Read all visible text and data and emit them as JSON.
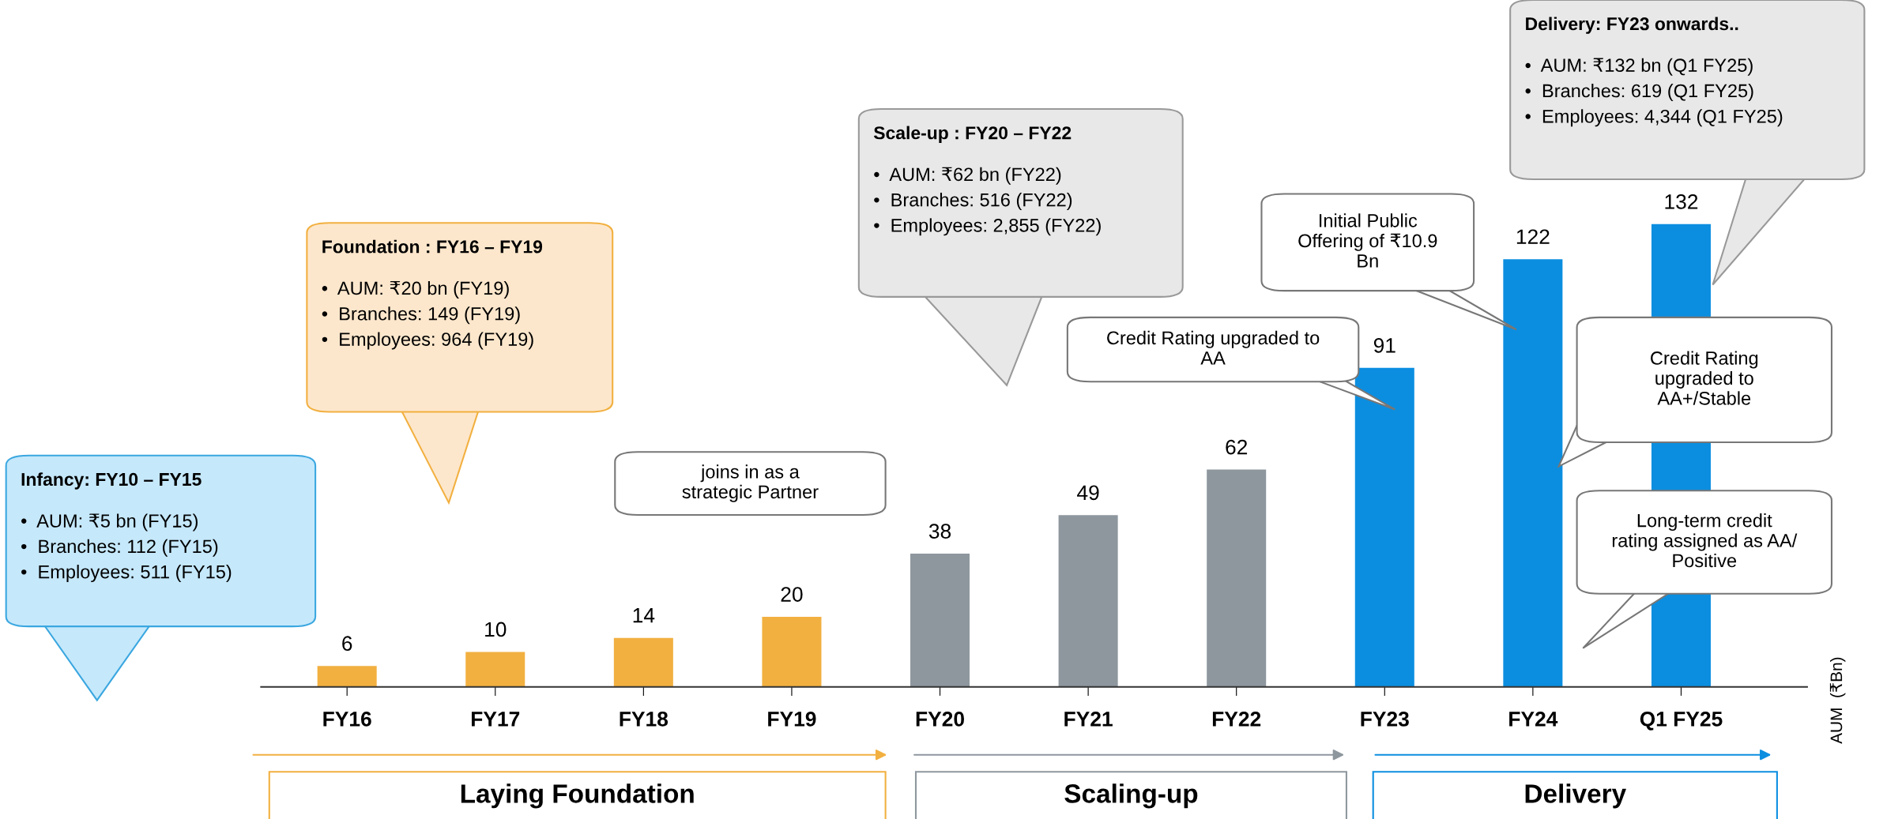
{
  "chart_data": {
    "type": "bar",
    "categories": [
      "FY16",
      "FY17",
      "FY18",
      "FY19",
      "FY20",
      "FY21",
      "FY22",
      "FY23",
      "FY24",
      "Q1 FY25"
    ],
    "values": [
      6,
      10,
      14,
      20,
      38,
      49,
      62,
      91,
      122,
      132
    ],
    "colors": [
      "#f2b040",
      "#f2b040",
      "#f2b040",
      "#f2b040",
      "#8e979e",
      "#8e979e",
      "#8e979e",
      "#0b8ee0",
      "#0b8ee0",
      "#0b8ee0"
    ],
    "data_labels": true,
    "ylabel": "AUM  (₹Bn)",
    "annotations": [
      "Infancy: FY10 – FY15",
      "•  AUM: ₹5 bn (FY15)\n•  Branches: 112 (FY15)\n•  Employees: 511 (FY15)",
      "Foundation : FY16 – FY19",
      "•  AUM: ₹20 bn (FY19)\n•  Branches: 149 (FY19)\n•  Employees: 964 (FY19)",
      "Scale-up : FY20 – FY22",
      "•  AUM: ₹62 bn (FY22)\n•  Branches: 516 (FY22)\n•  Employees: 2,855 (FY22)",
      "Delivery: FY23 onwards..",
      "•  AUM: ₹132 bn (Q1 FY25)\n•  Branches: 619 (Q1 FY25)\n•  Employees: 4,344 (Q1 FY25)",
      "joins in as a\nstrategic Partner",
      "Credit Rating upgraded to\nAA",
      "Initial Public\nOffering of ₹10.9\nBn",
      "Credit Rating\nupgraded to\nAA+/Stable",
      "Long-term credit\nrating assigned as AA/\nPositive",
      "Laying Foundation",
      "Scaling-up",
      "Delivery"
    ]
  }
}
